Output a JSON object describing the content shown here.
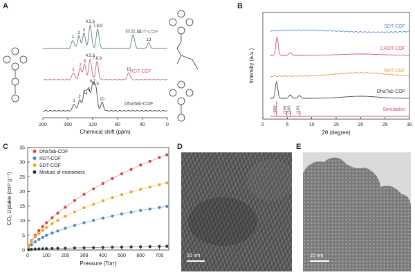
{
  "panels": {
    "A": "A",
    "B": "B",
    "C": "C",
    "D": "D",
    "E": "E"
  },
  "colors": {
    "sdt": "#5c7f84",
    "rdt": "#c8647c",
    "dhatab": "#444444",
    "crdt": "#d24f6e",
    "rdt_b": "#e0a33a",
    "sdt_b": "#5b8bd0",
    "simulation": "#d04f6e",
    "dhatab_c": "#d9443f",
    "rdt_c": "#4f86c6",
    "sdt_c": "#f2a422",
    "mix_c": "#333333"
  },
  "chart_data": [
    {
      "id": "A",
      "type": "line",
      "xlabel": "Chemical shift (ppm)",
      "xlim": [
        200,
        0
      ],
      "xticks": [
        200,
        160,
        120,
        80,
        40,
        0
      ],
      "series": [
        {
          "name": "SDT-COF",
          "peaks": [
            {
              "x": 152,
              "label": "1"
            },
            {
              "x": 142,
              "label": "2"
            },
            {
              "x": 134,
              "label": "3"
            },
            {
              "x": 124,
              "label": "4,5,6"
            },
            {
              "x": 112,
              "label": "7,8,9"
            },
            {
              "x": 55,
              "label": "10,11,12"
            },
            {
              "x": 30,
              "label": "13"
            }
          ]
        },
        {
          "name": "RDT-COF",
          "peaks": [
            {
              "x": 151,
              "label": "1"
            },
            {
              "x": 140,
              "label": "2"
            },
            {
              "x": 133,
              "label": "3"
            },
            {
              "x": 124,
              "label": "4,5,6"
            },
            {
              "x": 113,
              "label": "7,8,9"
            },
            {
              "x": 62,
              "label": "10"
            }
          ]
        },
        {
          "name": "DhaTab-COF",
          "peaks": [
            {
              "x": 150,
              "label": "1"
            },
            {
              "x": 141,
              "label": "2"
            },
            {
              "x": 134,
              "label": "3"
            },
            {
              "x": 130,
              "label": "4"
            },
            {
              "x": 126,
              "label": "5"
            },
            {
              "x": 120,
              "label": "6,7"
            },
            {
              "x": 115,
              "label": "8,9"
            },
            {
              "x": 105,
              "label": "10"
            }
          ]
        }
      ]
    },
    {
      "id": "B",
      "type": "line",
      "xlabel": "2θ (degree)",
      "ylabel": "Intensity (a.u.)",
      "xlim": [
        0,
        30
      ],
      "xticks": [
        0,
        5,
        10,
        15,
        20,
        25,
        30
      ],
      "series": [
        {
          "name": "SDT-COF"
        },
        {
          "name": "CRDT-COF"
        },
        {
          "name": "RDT-COF"
        },
        {
          "name": "DhaTab-COF"
        },
        {
          "name": "Simulation",
          "reflections": [
            {
              "x": 2.8,
              "label": "(100)"
            },
            {
              "x": 4.9,
              "label": "(110)"
            },
            {
              "x": 5.7,
              "label": "(200)"
            },
            {
              "x": 7.6,
              "label": "(120)"
            }
          ]
        }
      ]
    },
    {
      "id": "C",
      "type": "line",
      "xlabel": "Pressure (Torr)",
      "ylabel": "CO₂ Uptake (cm³ g⁻¹)",
      "xlim": [
        0,
        750
      ],
      "ylim": [
        0,
        35
      ],
      "xticks": [
        0,
        100,
        200,
        300,
        400,
        500,
        600,
        700
      ],
      "yticks": [
        0,
        5,
        10,
        15,
        20,
        25,
        30,
        35
      ],
      "legend": "top-left",
      "series": [
        {
          "name": "DhaTab-COF",
          "x": [
            5,
            20,
            40,
            60,
            80,
            100,
            130,
            160,
            200,
            250,
            300,
            350,
            400,
            450,
            500,
            550,
            600,
            650,
            700,
            740
          ],
          "y": [
            1.5,
            3.2,
            5.0,
            6.6,
            8.0,
            9.3,
            11.0,
            12.6,
            14.6,
            16.9,
            19.0,
            20.9,
            22.7,
            24.4,
            26.0,
            27.5,
            29.0,
            30.3,
            31.6,
            32.5
          ]
        },
        {
          "name": "RDT-COF",
          "x": [
            5,
            20,
            40,
            60,
            80,
            100,
            130,
            160,
            200,
            250,
            300,
            350,
            400,
            450,
            500,
            550,
            600,
            650,
            700,
            740
          ],
          "y": [
            0.8,
            1.8,
            2.8,
            3.6,
            4.3,
            5.0,
            5.8,
            6.5,
            7.4,
            8.4,
            9.3,
            10.1,
            10.9,
            11.6,
            12.3,
            12.9,
            13.5,
            14.0,
            14.5,
            14.9
          ]
        },
        {
          "name": "SDT-COF",
          "x": [
            5,
            20,
            40,
            60,
            80,
            100,
            130,
            160,
            200,
            250,
            300,
            350,
            400,
            450,
            500,
            550,
            600,
            650,
            700,
            740
          ],
          "y": [
            1.2,
            2.8,
            4.4,
            5.6,
            6.7,
            7.7,
            9.0,
            10.1,
            11.5,
            13.0,
            14.4,
            15.6,
            16.8,
            17.9,
            18.9,
            19.8,
            20.7,
            21.5,
            22.3,
            22.9
          ]
        },
        {
          "name": "Mixture of monomers",
          "x": [
            5,
            20,
            40,
            60,
            80,
            100,
            130,
            160,
            200,
            250,
            300,
            350,
            400,
            450,
            500,
            550,
            600,
            650,
            700,
            740
          ],
          "y": [
            0.1,
            0.2,
            0.3,
            0.35,
            0.4,
            0.45,
            0.5,
            0.55,
            0.6,
            0.7,
            0.75,
            0.8,
            0.9,
            0.95,
            1.0,
            1.05,
            1.1,
            1.15,
            1.2,
            1.25
          ]
        }
      ]
    }
  ],
  "tem": {
    "D": {
      "scale_label": "20 nm"
    },
    "E": {
      "scale_label": "20 nm"
    }
  }
}
